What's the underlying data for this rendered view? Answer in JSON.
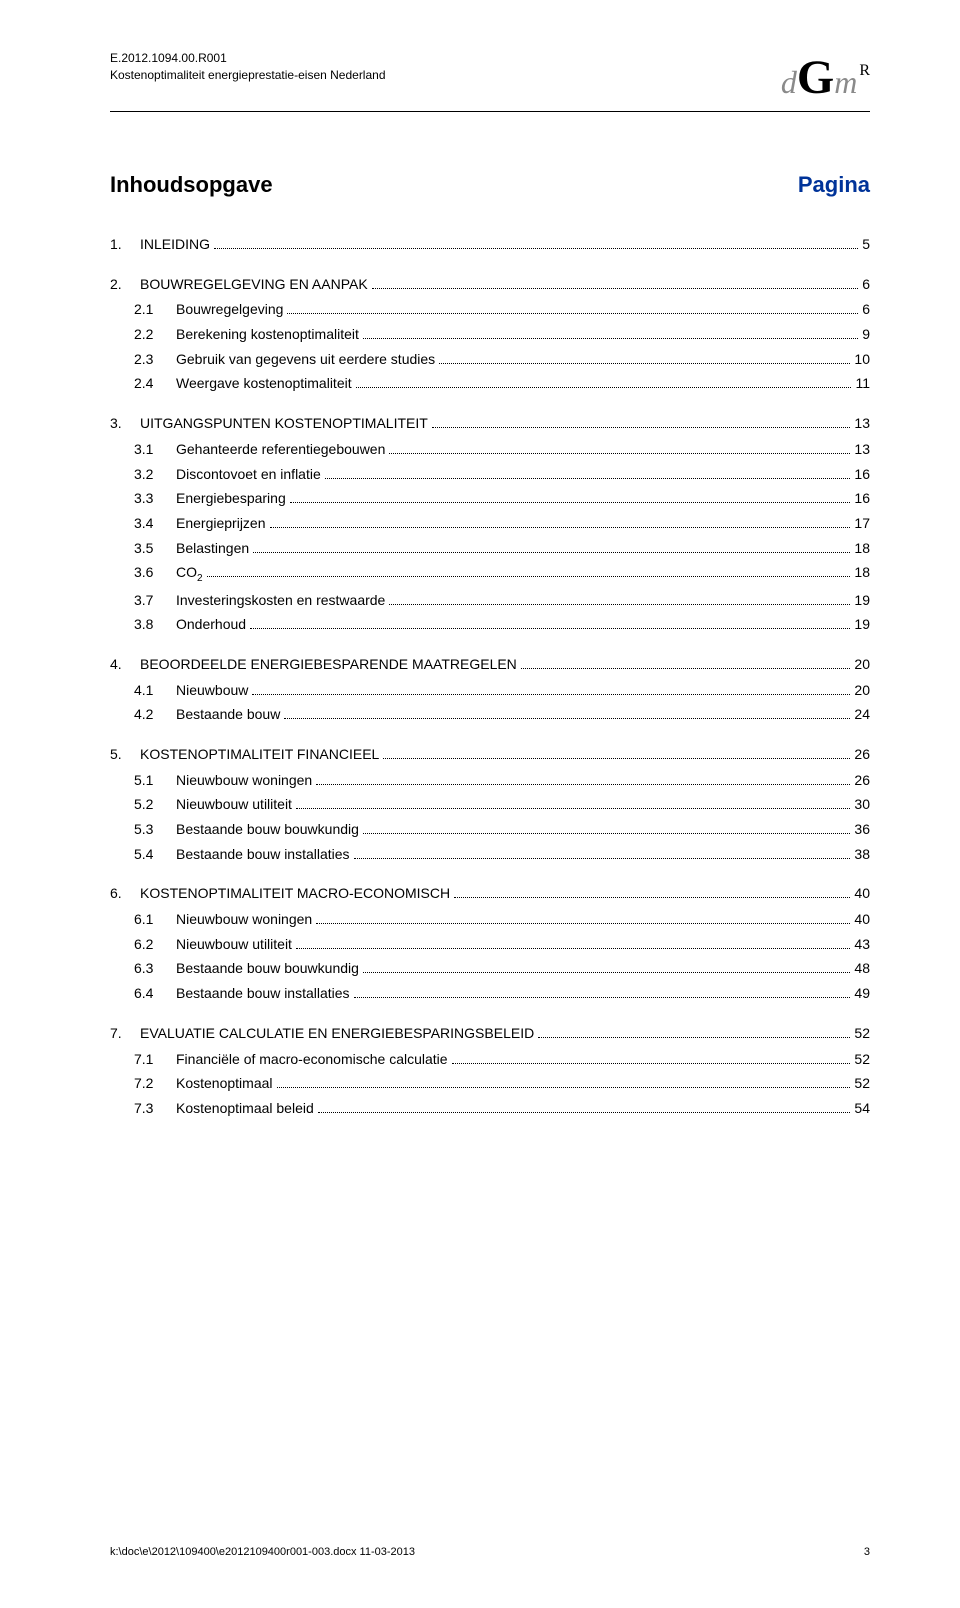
{
  "header": {
    "doc_ref": "E.2012.1094.00.R001",
    "doc_title": "Kostenoptimaliteit energieprestatie-eisen Nederland"
  },
  "logo": {
    "d": "d",
    "g": "G",
    "m": "m",
    "r": "R"
  },
  "title": {
    "label": "Inhoudsopgave",
    "page_label": "Pagina"
  },
  "toc": [
    {
      "level": 1,
      "num": "1.",
      "label": "INLEIDING",
      "page": "5"
    },
    {
      "level": 1,
      "num": "2.",
      "label": "BOUWREGELGEVING EN AANPAK",
      "page": "6"
    },
    {
      "level": 2,
      "num": "2.1",
      "label": "Bouwregelgeving",
      "page": "6"
    },
    {
      "level": 2,
      "num": "2.2",
      "label": "Berekening kostenoptimaliteit",
      "page": "9"
    },
    {
      "level": 2,
      "num": "2.3",
      "label": "Gebruik van gegevens uit eerdere studies",
      "page": "10"
    },
    {
      "level": 2,
      "num": "2.4",
      "label": "Weergave kostenoptimaliteit",
      "page": "11"
    },
    {
      "level": 1,
      "num": "3.",
      "label": "UITGANGSPUNTEN KOSTENOPTIMALITEIT",
      "page": "13"
    },
    {
      "level": 2,
      "num": "3.1",
      "label": "Gehanteerde referentiegebouwen",
      "page": "13"
    },
    {
      "level": 2,
      "num": "3.2",
      "label": "Discontovoet en inflatie",
      "page": "16"
    },
    {
      "level": 2,
      "num": "3.3",
      "label": "Energiebesparing",
      "page": "16"
    },
    {
      "level": 2,
      "num": "3.4",
      "label": "Energieprijzen",
      "page": "17"
    },
    {
      "level": 2,
      "num": "3.5",
      "label": "Belastingen",
      "page": "18"
    },
    {
      "level": 2,
      "num": "3.6",
      "label": "CO",
      "sub": "2",
      "page": "18"
    },
    {
      "level": 2,
      "num": "3.7",
      "label": "Investeringskosten en restwaarde",
      "page": "19"
    },
    {
      "level": 2,
      "num": "3.8",
      "label": "Onderhoud",
      "page": "19"
    },
    {
      "level": 1,
      "num": "4.",
      "label": "BEOORDEELDE ENERGIEBESPARENDE MAATREGELEN",
      "page": "20"
    },
    {
      "level": 2,
      "num": "4.1",
      "label": "Nieuwbouw",
      "page": "20"
    },
    {
      "level": 2,
      "num": "4.2",
      "label": "Bestaande bouw",
      "page": "24"
    },
    {
      "level": 1,
      "num": "5.",
      "label": "KOSTENOPTIMALITEIT FINANCIEEL",
      "page": "26"
    },
    {
      "level": 2,
      "num": "5.1",
      "label": "Nieuwbouw woningen",
      "page": "26"
    },
    {
      "level": 2,
      "num": "5.2",
      "label": "Nieuwbouw utiliteit",
      "page": "30"
    },
    {
      "level": 2,
      "num": "5.3",
      "label": "Bestaande bouw bouwkundig",
      "page": "36"
    },
    {
      "level": 2,
      "num": "5.4",
      "label": "Bestaande bouw installaties",
      "page": "38"
    },
    {
      "level": 1,
      "num": "6.",
      "label": "KOSTENOPTIMALITEIT MACRO-ECONOMISCH",
      "page": "40"
    },
    {
      "level": 2,
      "num": "6.1",
      "label": "Nieuwbouw woningen",
      "page": "40"
    },
    {
      "level": 2,
      "num": "6.2",
      "label": "Nieuwbouw utiliteit",
      "page": "43"
    },
    {
      "level": 2,
      "num": "6.3",
      "label": "Bestaande bouw bouwkundig",
      "page": "48"
    },
    {
      "level": 2,
      "num": "6.4",
      "label": "Bestaande bouw installaties",
      "page": "49"
    },
    {
      "level": 1,
      "num": "7.",
      "label": "EVALUATIE CALCULATIE EN ENERGIEBESPARINGSBELEID",
      "page": "52"
    },
    {
      "level": 2,
      "num": "7.1",
      "label": "Financiële of macro-economische calculatie",
      "page": "52"
    },
    {
      "level": 2,
      "num": "7.2",
      "label": "Kostenoptimaal",
      "page": "52"
    },
    {
      "level": 2,
      "num": "7.3",
      "label": "Kostenoptimaal beleid",
      "page": "54"
    }
  ],
  "footer": {
    "path": "k:\\doc\\e\\2012\\109400\\e2012109400r001-003.docx 11-03-2013",
    "page_num": "3"
  }
}
